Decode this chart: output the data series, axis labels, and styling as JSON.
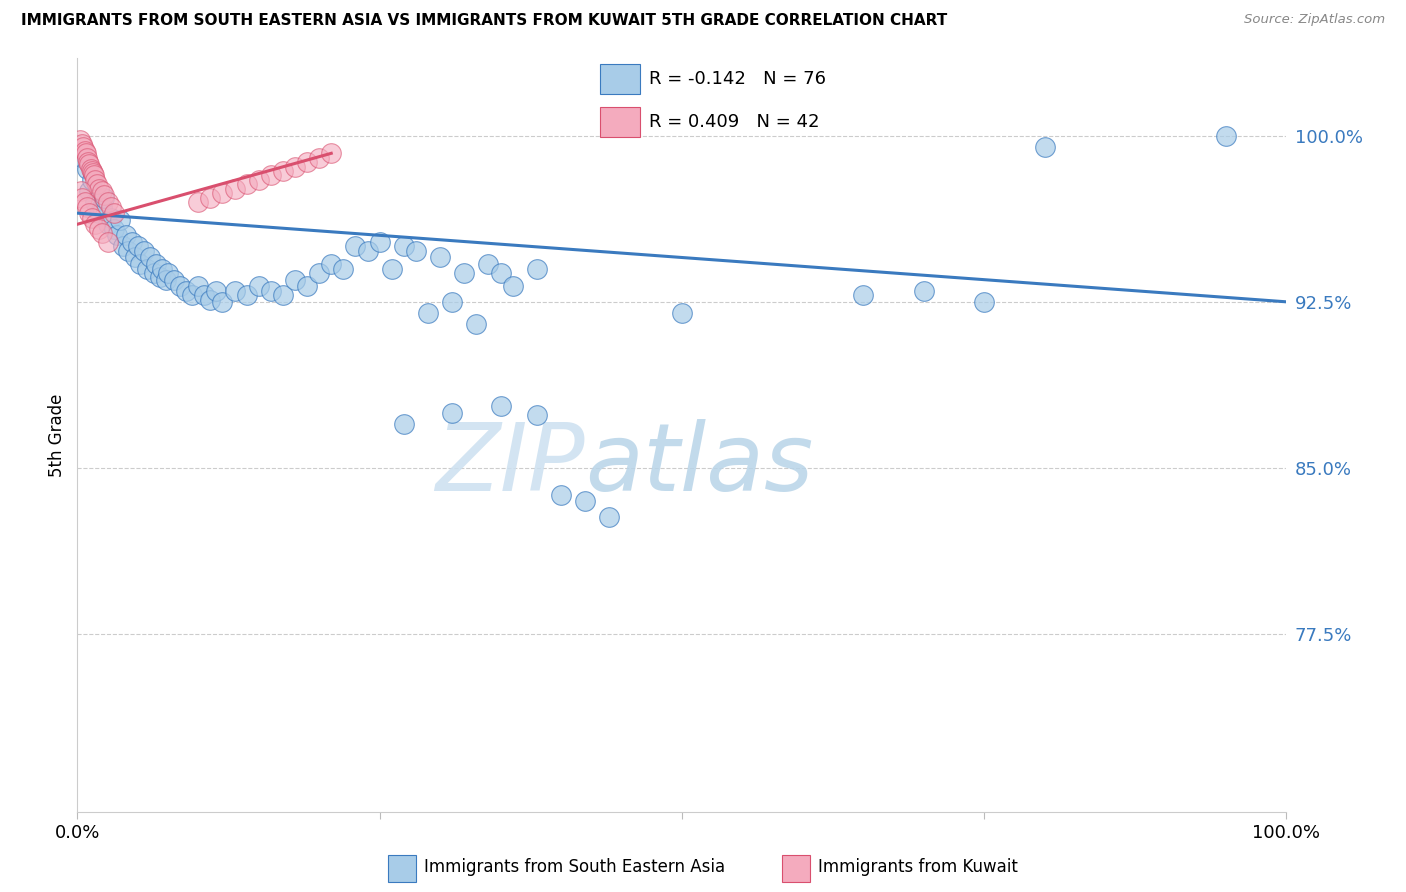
{
  "title": "IMMIGRANTS FROM SOUTH EASTERN ASIA VS IMMIGRANTS FROM KUWAIT 5TH GRADE CORRELATION CHART",
  "source": "Source: ZipAtlas.com",
  "ylabel": "5th Grade",
  "ytick_labels": [
    "100.0%",
    "92.5%",
    "85.0%",
    "77.5%"
  ],
  "ytick_values": [
    1.0,
    0.925,
    0.85,
    0.775
  ],
  "xlim": [
    0.0,
    1.0
  ],
  "ylim": [
    0.695,
    1.035
  ],
  "legend_blue_r": "R = -0.142",
  "legend_blue_n": "N = 76",
  "legend_pink_r": "R = 0.409",
  "legend_pink_n": "N = 42",
  "legend_label_blue": "Immigrants from South Eastern Asia",
  "legend_label_pink": "Immigrants from Kuwait",
  "blue_color": "#a8cce8",
  "pink_color": "#f4abbe",
  "trendline_blue_color": "#3a7abf",
  "trendline_pink_color": "#d94f6e",
  "watermark_zip": "ZIP",
  "watermark_atlas": "atlas",
  "blue_scatter_x": [
    0.005,
    0.008,
    0.01,
    0.012,
    0.015,
    0.018,
    0.02,
    0.022,
    0.025,
    0.028,
    0.03,
    0.033,
    0.035,
    0.038,
    0.04,
    0.042,
    0.045,
    0.048,
    0.05,
    0.052,
    0.055,
    0.058,
    0.06,
    0.063,
    0.065,
    0.068,
    0.07,
    0.073,
    0.075,
    0.08,
    0.085,
    0.09,
    0.095,
    0.1,
    0.105,
    0.11,
    0.115,
    0.12,
    0.13,
    0.14,
    0.15,
    0.16,
    0.17,
    0.18,
    0.19,
    0.2,
    0.21,
    0.22,
    0.23,
    0.24,
    0.25,
    0.26,
    0.27,
    0.28,
    0.3,
    0.32,
    0.34,
    0.35,
    0.36,
    0.38,
    0.29,
    0.31,
    0.33,
    0.5,
    0.65,
    0.7,
    0.75,
    0.8,
    0.27,
    0.31,
    0.35,
    0.38,
    0.4,
    0.42,
    0.44,
    0.95
  ],
  "blue_scatter_y": [
    0.99,
    0.985,
    0.975,
    0.98,
    0.97,
    0.965,
    0.968,
    0.972,
    0.96,
    0.963,
    0.958,
    0.955,
    0.962,
    0.95,
    0.955,
    0.948,
    0.952,
    0.945,
    0.95,
    0.942,
    0.948,
    0.94,
    0.945,
    0.938,
    0.942,
    0.936,
    0.94,
    0.935,
    0.938,
    0.935,
    0.932,
    0.93,
    0.928,
    0.932,
    0.928,
    0.926,
    0.93,
    0.925,
    0.93,
    0.928,
    0.932,
    0.93,
    0.928,
    0.935,
    0.932,
    0.938,
    0.942,
    0.94,
    0.95,
    0.948,
    0.952,
    0.94,
    0.95,
    0.948,
    0.945,
    0.938,
    0.942,
    0.938,
    0.932,
    0.94,
    0.92,
    0.925,
    0.915,
    0.92,
    0.928,
    0.93,
    0.925,
    0.995,
    0.87,
    0.875,
    0.878,
    0.874,
    0.838,
    0.835,
    0.828,
    1.0
  ],
  "pink_scatter_x": [
    0.002,
    0.004,
    0.005,
    0.006,
    0.007,
    0.008,
    0.009,
    0.01,
    0.011,
    0.012,
    0.013,
    0.014,
    0.015,
    0.016,
    0.018,
    0.02,
    0.022,
    0.025,
    0.028,
    0.03,
    0.003,
    0.004,
    0.006,
    0.008,
    0.01,
    0.012,
    0.015,
    0.018,
    0.02,
    0.025,
    0.1,
    0.11,
    0.12,
    0.13,
    0.14,
    0.15,
    0.16,
    0.17,
    0.18,
    0.19,
    0.2,
    0.21
  ],
  "pink_scatter_y": [
    0.998,
    0.996,
    0.995,
    0.993,
    0.992,
    0.99,
    0.988,
    0.987,
    0.985,
    0.984,
    0.983,
    0.982,
    0.98,
    0.978,
    0.976,
    0.975,
    0.973,
    0.97,
    0.968,
    0.965,
    0.975,
    0.972,
    0.97,
    0.968,
    0.965,
    0.963,
    0.96,
    0.958,
    0.956,
    0.952,
    0.97,
    0.972,
    0.974,
    0.976,
    0.978,
    0.98,
    0.982,
    0.984,
    0.986,
    0.988,
    0.99,
    0.992
  ],
  "blue_trendline_x": [
    0.0,
    1.0
  ],
  "blue_trendline_y": [
    0.965,
    0.925
  ],
  "pink_trendline_x": [
    0.0,
    0.21
  ],
  "pink_trendline_y": [
    0.96,
    0.992
  ]
}
